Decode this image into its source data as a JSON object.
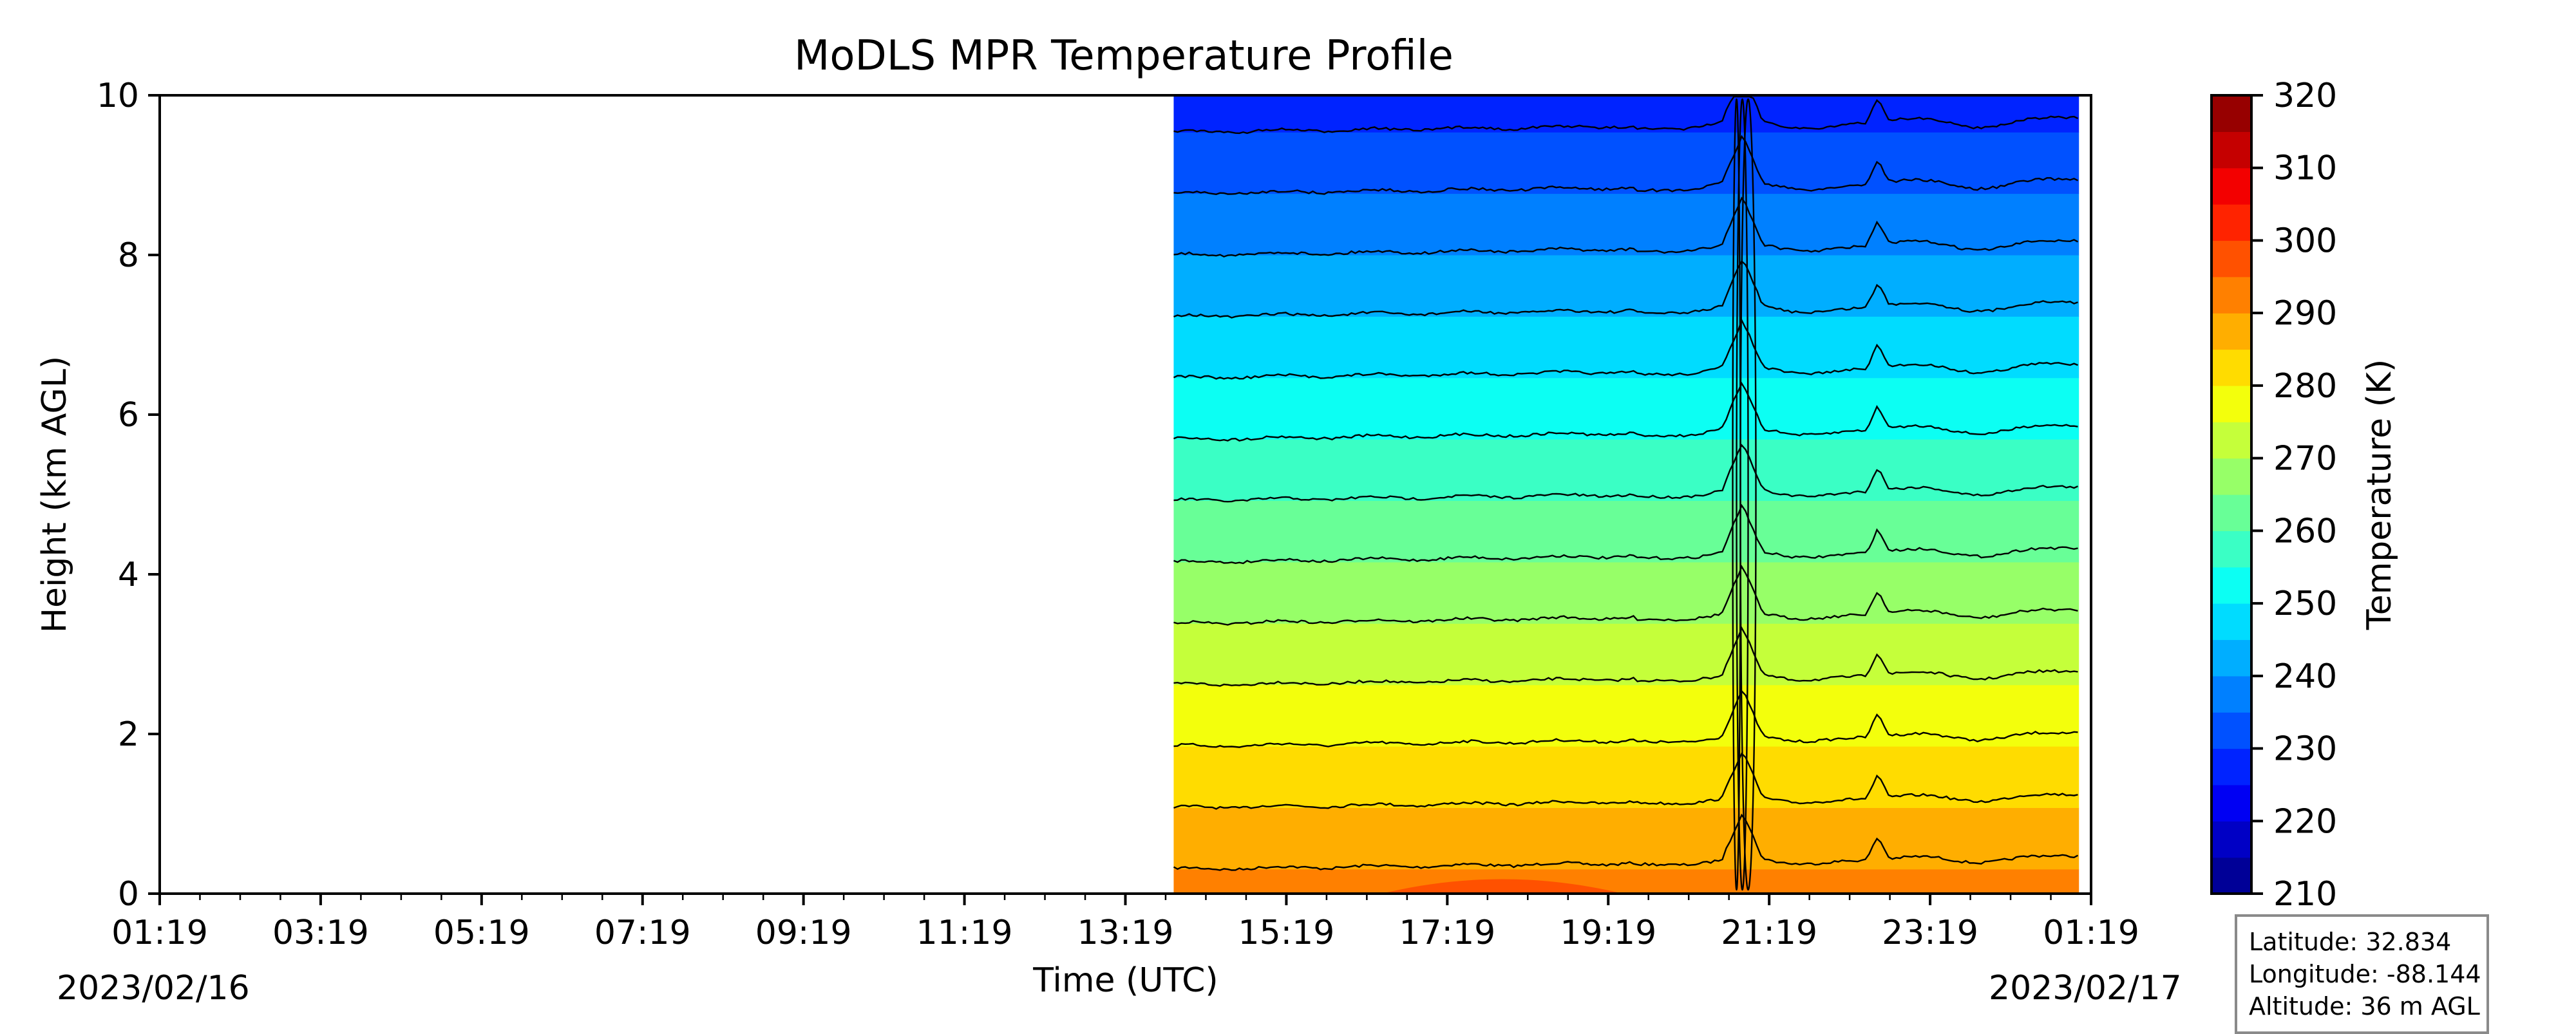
{
  "chart_data": {
    "type": "heatmap",
    "title": "MoDLS MPR Temperature Profile",
    "xlabel": "Time (UTC)",
    "ylabel": "Height (km AGL)",
    "x_ticks": [
      "01:19",
      "03:19",
      "05:19",
      "07:19",
      "09:19",
      "11:19",
      "13:19",
      "15:19",
      "17:19",
      "19:19",
      "21:19",
      "23:19",
      "01:19"
    ],
    "date_start": "2023/02/16",
    "date_end": "2023/02/17",
    "x_range": [
      "2023-02-16 01:19",
      "2023-02-17 01:19"
    ],
    "data_start_time": "2023-02-16 13:55",
    "data_end_time": "2023-02-17 01:10",
    "ylim": [
      0,
      10
    ],
    "y_ticks": [
      0,
      2,
      4,
      6,
      8,
      10
    ],
    "colorbar": {
      "label": "Temperature (K)",
      "range": [
        210,
        320
      ],
      "ticks": [
        210,
        220,
        230,
        240,
        250,
        260,
        270,
        280,
        290,
        300,
        310,
        320
      ],
      "step": 5,
      "colormap": "jet"
    },
    "surface_temperature_K": 292,
    "lapse_rate_K_per_km": 6.5,
    "contour_levels_K": [
      290,
      285,
      280,
      275,
      270,
      265,
      260,
      255,
      250,
      245,
      240,
      235,
      230,
      225
    ],
    "disturbance_time": "2023-02-16 20:59",
    "grid": false
  },
  "station": {
    "latitude": "Latitude: 32.834",
    "longitude": "Longitude: -88.144",
    "altitude": "Altitude: 36 m AGL"
  }
}
